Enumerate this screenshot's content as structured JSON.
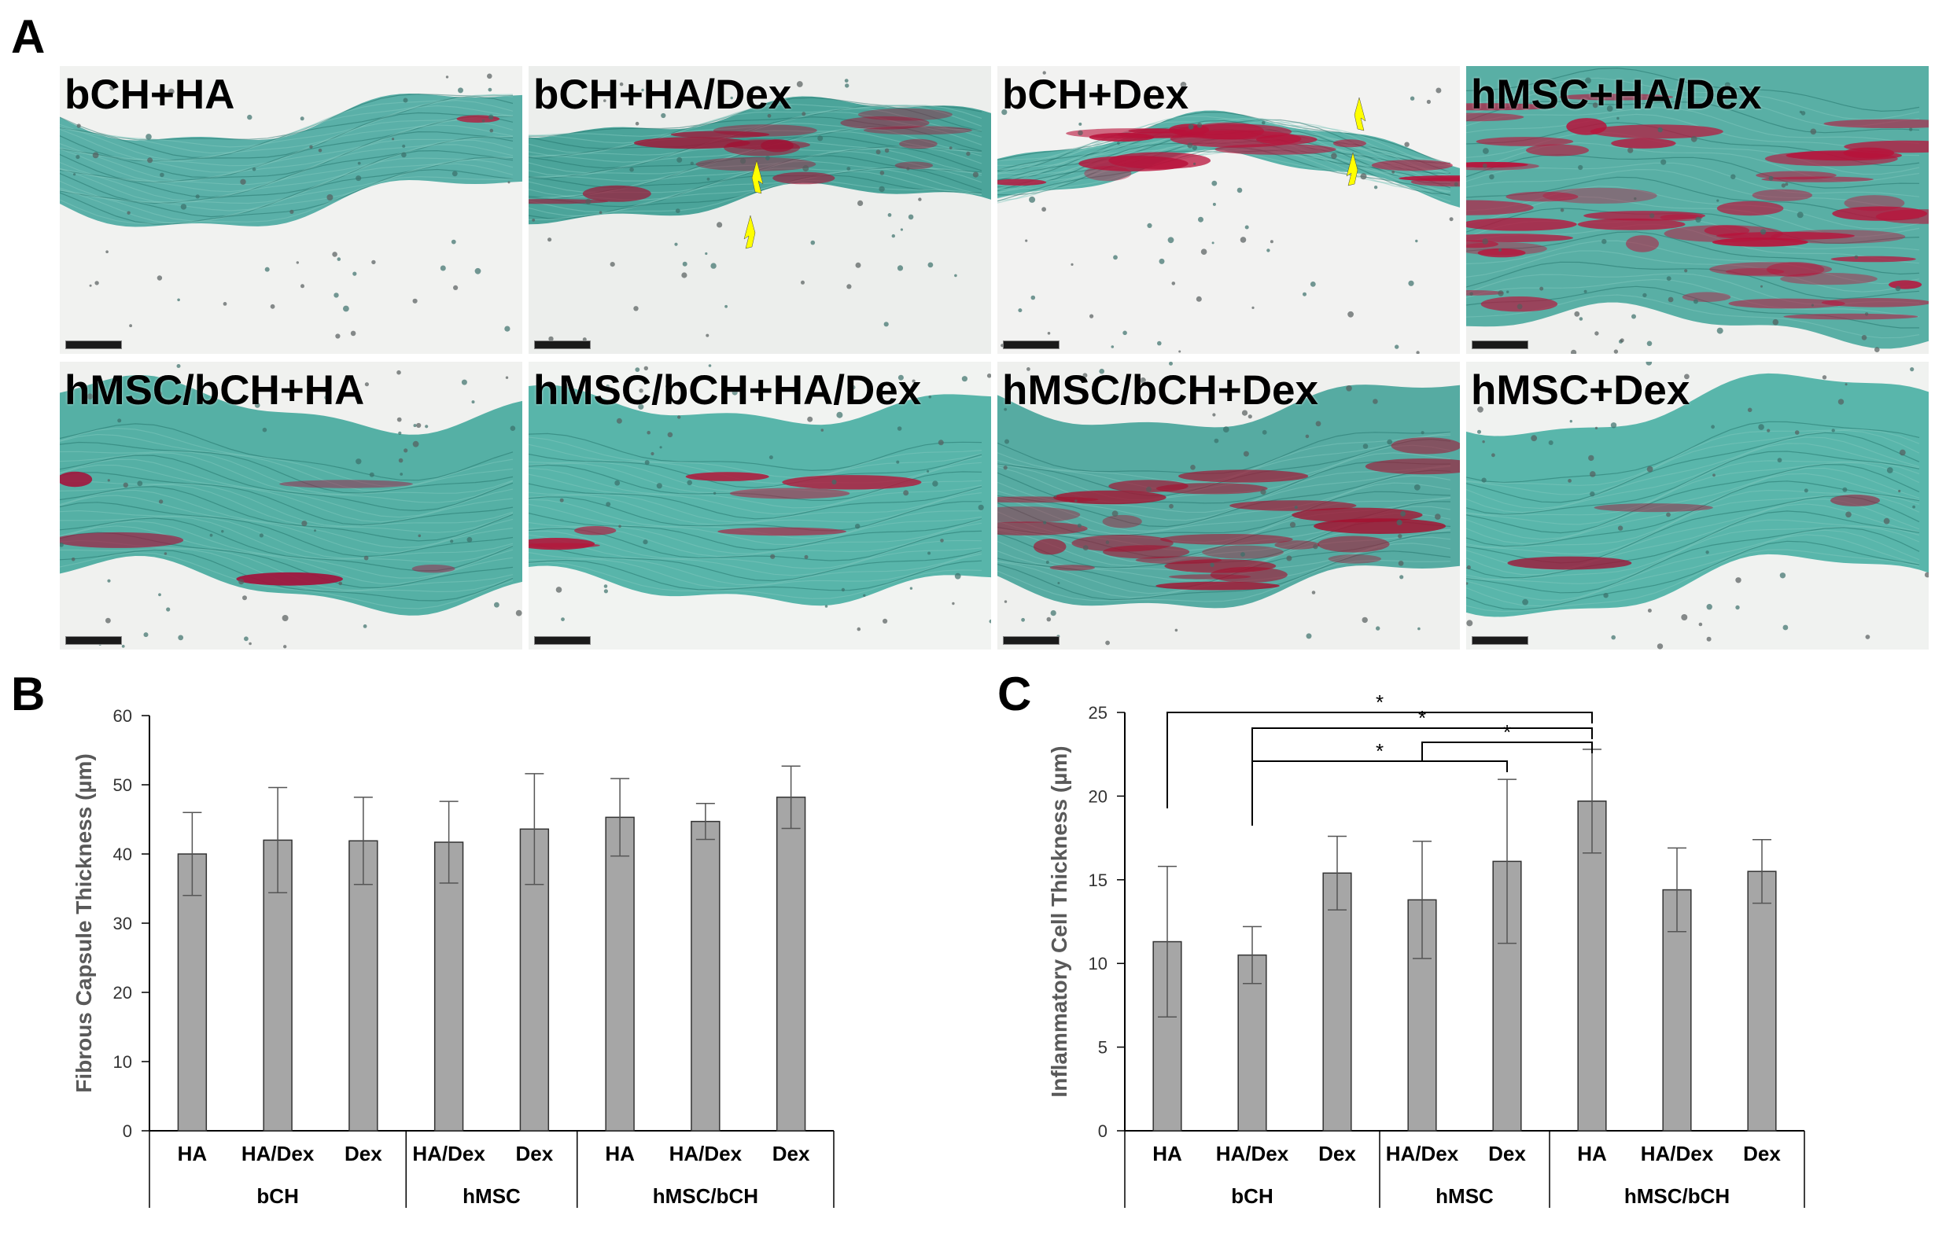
{
  "panel_labels": {
    "a": "A",
    "b": "B",
    "c": "C"
  },
  "histology": {
    "tiles": [
      {
        "label": "bCH+HA",
        "colors": {
          "bg": "#f1f2f0",
          "stain": "#3fa59b",
          "red": "#b3163a"
        },
        "red_amount": 0.02,
        "arrows": 0
      },
      {
        "label": "bCH+HA/Dex",
        "colors": {
          "bg": "#eceeec",
          "stain": "#2f978c",
          "red": "#a01234"
        },
        "red_amount": 0.25,
        "arrows": 2
      },
      {
        "label": "bCH+Dex",
        "colors": {
          "bg": "#f2f2f1",
          "stain": "#40a79c",
          "red": "#b8123a"
        },
        "red_amount": 0.3,
        "arrows": 2
      },
      {
        "label": "hMSC+HA/Dex",
        "colors": {
          "bg": "#eff0ee",
          "stain": "#3ea398",
          "red": "#b8123a"
        },
        "red_amount": 0.85,
        "arrows": 0
      },
      {
        "label": "hMSC/bCH+HA",
        "colors": {
          "bg": "#f0f1ef",
          "stain": "#3aa498",
          "red": "#a4103a"
        },
        "red_amount": 0.08,
        "arrows": 0
      },
      {
        "label": "hMSC/bCH+HA/Dex",
        "colors": {
          "bg": "#f1f3f1",
          "stain": "#3da99d",
          "red": "#b3163a"
        },
        "red_amount": 0.12,
        "arrows": 0
      },
      {
        "label": "hMSC/bCH+Dex",
        "colors": {
          "bg": "#eff0ee",
          "stain": "#3b9f94",
          "red": "#a5102f"
        },
        "red_amount": 0.45,
        "arrows": 0
      },
      {
        "label": "hMSC+Dex",
        "colors": {
          "bg": "#f0f2f0",
          "stain": "#3eab9f",
          "red": "#a01234"
        },
        "red_amount": 0.05,
        "arrows": 0
      }
    ],
    "arrow_color": "#ffff00"
  },
  "chart_data": [
    {
      "type": "bar",
      "panel": "B",
      "ylabel": "Fibrous Capsule Thickness (µm)",
      "ylim": [
        0,
        60
      ],
      "yticks": [
        "0",
        "10",
        "20",
        "30",
        "40",
        "50",
        "60"
      ],
      "categories": [
        "HA",
        "HA/Dex",
        "Dex",
        "HA/Dex",
        "Dex",
        "HA",
        "HA/Dex",
        "Dex"
      ],
      "groups": [
        {
          "label": "bCH",
          "count": 3
        },
        {
          "label": "hMSC",
          "count": 2
        },
        {
          "label": "hMSC/bCH",
          "count": 3
        }
      ],
      "values": [
        40.0,
        42.0,
        41.9,
        41.7,
        43.6,
        45.3,
        44.7,
        48.2
      ],
      "errors": [
        6.0,
        7.6,
        6.3,
        5.9,
        8.0,
        5.6,
        2.6,
        4.5
      ],
      "bar_color": "#a6a6a6",
      "significance": []
    },
    {
      "type": "bar",
      "panel": "C",
      "ylabel": "Inflammatory Cell Thickness (µm)",
      "ylim": [
        0,
        25
      ],
      "yticks": [
        "0",
        "5",
        "10",
        "15",
        "20",
        "25"
      ],
      "categories": [
        "HA",
        "HA/Dex",
        "Dex",
        "HA/Dex",
        "Dex",
        "HA",
        "HA/Dex",
        "Dex"
      ],
      "groups": [
        {
          "label": "bCH",
          "count": 3
        },
        {
          "label": "hMSC",
          "count": 2
        },
        {
          "label": "hMSC/bCH",
          "count": 3
        }
      ],
      "values": [
        11.3,
        10.5,
        15.4,
        13.8,
        16.1,
        19.7,
        14.4,
        15.5
      ],
      "errors": [
        4.5,
        1.7,
        2.2,
        3.5,
        4.9,
        3.1,
        2.5,
        1.9
      ],
      "bar_color": "#a6a6a6",
      "significance": [
        {
          "from": 0,
          "to": 5,
          "label": "*"
        },
        {
          "from": 1,
          "to": 5,
          "label": "*"
        },
        {
          "from": 4,
          "to": 5,
          "label": "*"
        },
        {
          "from": 1,
          "to": 4,
          "label": "*"
        }
      ]
    }
  ]
}
